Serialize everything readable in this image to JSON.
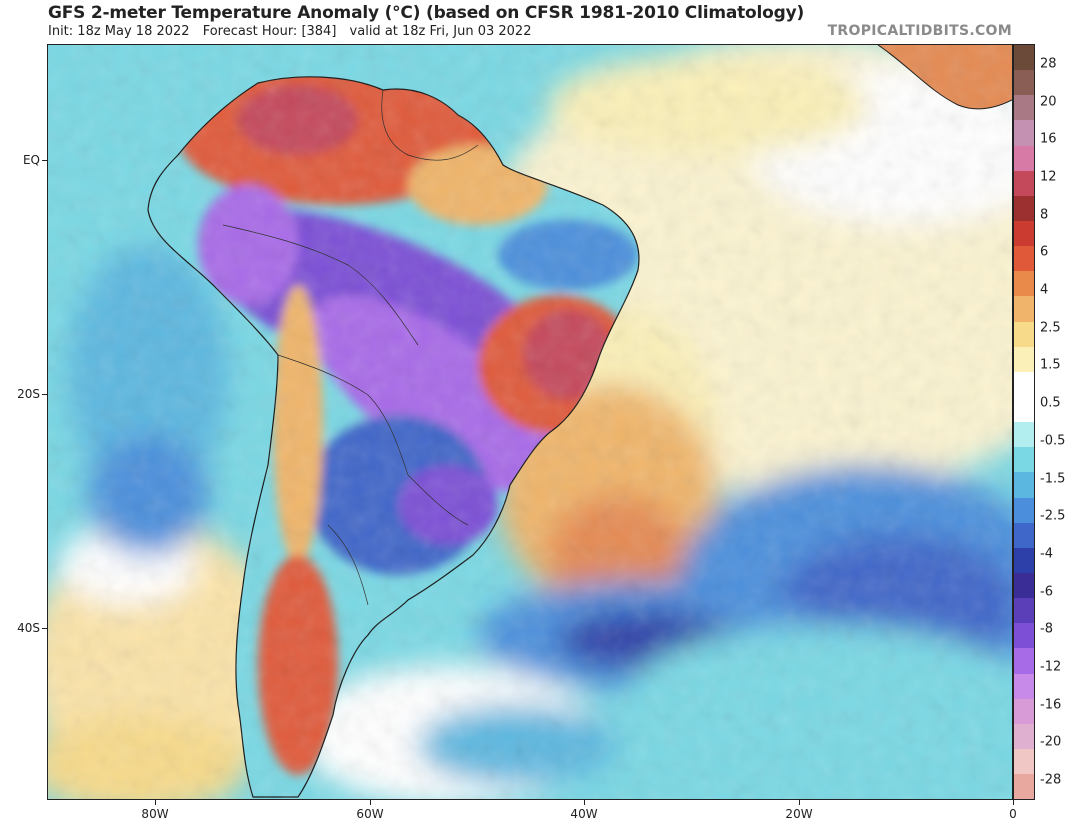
{
  "header": {
    "title": "GFS 2-meter Temperature Anomaly (°C) (based on CFSR 1981-2010 Climatology)",
    "init": "Init: 18z May 18 2022",
    "forecast_hour": "Forecast Hour: [384]",
    "valid": "valid at 18z Fri, Jun 03 2022",
    "brand": "TROPICALTIDBITS.COM"
  },
  "axes": {
    "lat_labels": [
      "EQ",
      "20S",
      "40S"
    ],
    "lon_labels": [
      "80W",
      "60W",
      "40W",
      "20W",
      "0"
    ]
  },
  "legend": {
    "labels": [
      "28",
      "20",
      "16",
      "12",
      "8",
      "6",
      "4",
      "2.5",
      "1.5",
      "0.5",
      "-0.5",
      "-1.5",
      "-2.5",
      "-4",
      "-6",
      "-8",
      "-12",
      "-16",
      "-20",
      "-28"
    ],
    "colors": [
      "#6b4a3a",
      "#8a5e55",
      "#a97a86",
      "#c491b2",
      "#d77aa6",
      "#c44a5b",
      "#9c2f2f",
      "#cc3b2f",
      "#e05a3a",
      "#ea8a4a",
      "#f0b56a",
      "#f7da8a",
      "#fbf0b8",
      "#ffffff",
      "#ffffff",
      "#b2eef0",
      "#79d8e4",
      "#5cb7e0",
      "#4b8fdc",
      "#3f66c9",
      "#2d3fa8",
      "#3a2d96",
      "#5a3fb8",
      "#7c4fd6",
      "#a86be8",
      "#c88ae8",
      "#d99ad8",
      "#e0b0d0",
      "#f0c7c4",
      "#e8a8a0"
    ],
    "ocean_color": "#79d8e4"
  }
}
